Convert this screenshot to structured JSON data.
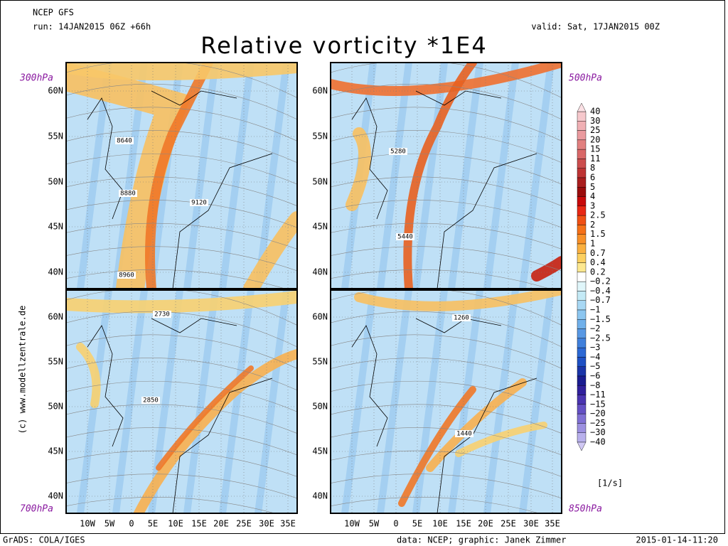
{
  "header": {
    "model": "NCEP GFS",
    "run": "run: 14JAN2015 06Z +66h",
    "valid": "valid: Sat, 17JAN2015 00Z",
    "title": "Relative vorticity *1E4"
  },
  "panels": [
    {
      "level": "300hPa",
      "contours": [
        "8640",
        "8880",
        "9120",
        "8960"
      ]
    },
    {
      "level": "500hPa",
      "contours": [
        "5280",
        "5440"
      ]
    },
    {
      "level": "700hPa",
      "contours": [
        "2730",
        "2850"
      ]
    },
    {
      "level": "850hPa",
      "contours": [
        "1260",
        "1440"
      ]
    }
  ],
  "lat_labels": [
    "60N",
    "55N",
    "50N",
    "45N",
    "40N"
  ],
  "lon_labels": [
    "10W",
    "5W",
    "0",
    "5E",
    "10E",
    "15E",
    "20E",
    "25E",
    "30E",
    "35E"
  ],
  "colorbar": {
    "labels": [
      "40",
      "30",
      "25",
      "20",
      "15",
      "11",
      "8",
      "6",
      "5",
      "4",
      "3",
      "2.5",
      "2",
      "1.5",
      "1",
      "0.7",
      "0.4",
      "0.2",
      "−0.2",
      "−0.4",
      "−0.7",
      "−1",
      "−1.5",
      "−2",
      "−2.5",
      "−3",
      "−4",
      "−5",
      "−6",
      "−8",
      "−11",
      "−15",
      "−20",
      "−25",
      "−30",
      "−40"
    ],
    "colors": [
      "#f6c8cc",
      "#f0b0b4",
      "#ea9a9e",
      "#e2807f",
      "#d96868",
      "#cc4e4e",
      "#be3434",
      "#aa1e1e",
      "#9a0c0c",
      "#c80a0a",
      "#e82814",
      "#f05014",
      "#f57018",
      "#f89028",
      "#fab040",
      "#fcd060",
      "#fde890",
      "#ffffff",
      "#e0f6fa",
      "#c4eaf6",
      "#a8d8f4",
      "#8cc6f0",
      "#70b0ea",
      "#5898e4",
      "#4080dc",
      "#2c68d4",
      "#1e50c4",
      "#1a34a8",
      "#1a1c90",
      "#30209c",
      "#4a34b0",
      "#6450c4",
      "#8070d4",
      "#9c90e0",
      "#b8b0ec"
    ],
    "unit": "[1/s]"
  },
  "credit": "(c) www.modellzentrale.de",
  "footer": {
    "left": "GrADS: COLA/IGES",
    "center": "data: NCEP; graphic: Janek Zimmer",
    "right": "2015-01-14-11:20"
  }
}
